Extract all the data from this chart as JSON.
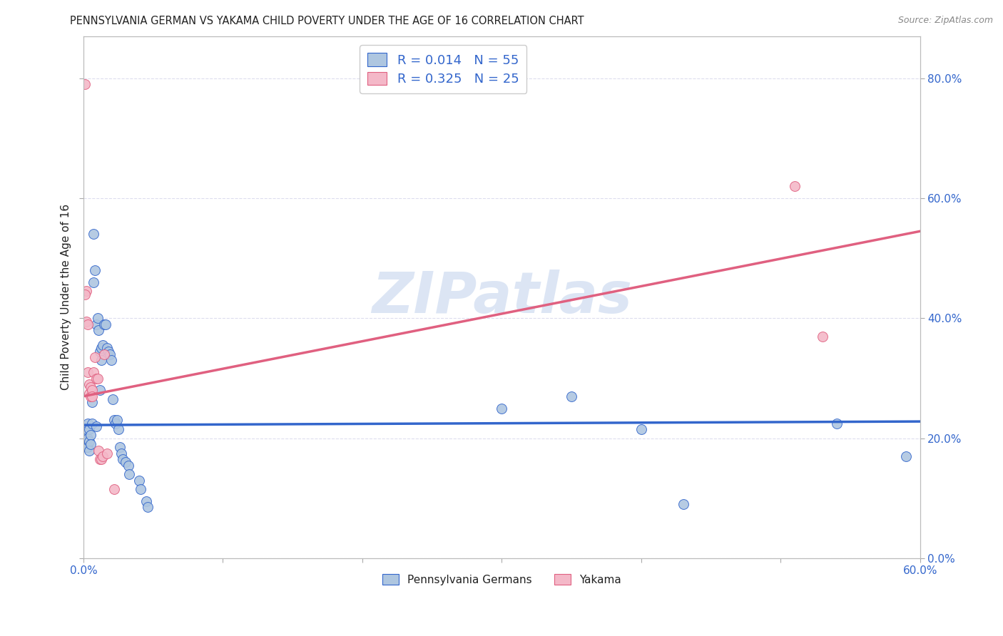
{
  "title": "PENNSYLVANIA GERMAN VS YAKAMA CHILD POVERTY UNDER THE AGE OF 16 CORRELATION CHART",
  "source": "Source: ZipAtlas.com",
  "ylabel": "Child Poverty Under the Age of 16",
  "watermark": "ZIPatlas",
  "legend_blue_R": "R = 0.014",
  "legend_blue_N": "N = 55",
  "legend_pink_R": "R = 0.325",
  "legend_pink_N": "N = 25",
  "blue_color": "#aec6e0",
  "pink_color": "#f4b8c8",
  "blue_line_color": "#3366cc",
  "pink_line_color": "#e06080",
  "blue_scatter": [
    [
      0.001,
      0.22
    ],
    [
      0.001,
      0.21
    ],
    [
      0.001,
      0.2
    ],
    [
      0.002,
      0.215
    ],
    [
      0.002,
      0.195
    ],
    [
      0.002,
      0.185
    ],
    [
      0.003,
      0.225
    ],
    [
      0.003,
      0.2
    ],
    [
      0.003,
      0.185
    ],
    [
      0.004,
      0.215
    ],
    [
      0.004,
      0.195
    ],
    [
      0.004,
      0.18
    ],
    [
      0.005,
      0.205
    ],
    [
      0.005,
      0.19
    ],
    [
      0.006,
      0.26
    ],
    [
      0.006,
      0.225
    ],
    [
      0.007,
      0.54
    ],
    [
      0.007,
      0.46
    ],
    [
      0.008,
      0.48
    ],
    [
      0.009,
      0.39
    ],
    [
      0.009,
      0.22
    ],
    [
      0.01,
      0.4
    ],
    [
      0.011,
      0.38
    ],
    [
      0.012,
      0.345
    ],
    [
      0.012,
      0.28
    ],
    [
      0.013,
      0.35
    ],
    [
      0.013,
      0.33
    ],
    [
      0.014,
      0.355
    ],
    [
      0.015,
      0.39
    ],
    [
      0.016,
      0.39
    ],
    [
      0.017,
      0.35
    ],
    [
      0.018,
      0.345
    ],
    [
      0.019,
      0.34
    ],
    [
      0.02,
      0.33
    ],
    [
      0.021,
      0.265
    ],
    [
      0.022,
      0.23
    ],
    [
      0.023,
      0.225
    ],
    [
      0.024,
      0.23
    ],
    [
      0.025,
      0.215
    ],
    [
      0.026,
      0.185
    ],
    [
      0.027,
      0.175
    ],
    [
      0.028,
      0.165
    ],
    [
      0.03,
      0.16
    ],
    [
      0.032,
      0.155
    ],
    [
      0.033,
      0.14
    ],
    [
      0.04,
      0.13
    ],
    [
      0.041,
      0.115
    ],
    [
      0.045,
      0.095
    ],
    [
      0.046,
      0.085
    ],
    [
      0.3,
      0.25
    ],
    [
      0.35,
      0.27
    ],
    [
      0.4,
      0.215
    ],
    [
      0.43,
      0.09
    ],
    [
      0.54,
      0.225
    ],
    [
      0.59,
      0.17
    ]
  ],
  "pink_scatter": [
    [
      0.001,
      0.79
    ],
    [
      0.002,
      0.445
    ],
    [
      0.002,
      0.395
    ],
    [
      0.003,
      0.39
    ],
    [
      0.003,
      0.31
    ],
    [
      0.004,
      0.29
    ],
    [
      0.004,
      0.275
    ],
    [
      0.005,
      0.285
    ],
    [
      0.005,
      0.27
    ],
    [
      0.006,
      0.28
    ],
    [
      0.006,
      0.27
    ],
    [
      0.007,
      0.31
    ],
    [
      0.008,
      0.335
    ],
    [
      0.009,
      0.3
    ],
    [
      0.01,
      0.3
    ],
    [
      0.011,
      0.18
    ],
    [
      0.012,
      0.165
    ],
    [
      0.013,
      0.165
    ],
    [
      0.014,
      0.17
    ],
    [
      0.015,
      0.34
    ],
    [
      0.017,
      0.175
    ],
    [
      0.022,
      0.115
    ],
    [
      0.51,
      0.62
    ],
    [
      0.53,
      0.37
    ],
    [
      0.001,
      0.44
    ]
  ],
  "xlim": [
    0.0,
    0.6
  ],
  "ylim": [
    0.0,
    0.87
  ],
  "yticks": [
    0.0,
    0.2,
    0.4,
    0.6,
    0.8
  ],
  "ytick_labels": [
    "0.0%",
    "20.0%",
    "40.0%",
    "60.0%",
    "80.0%"
  ],
  "blue_trendline": [
    [
      0.0,
      0.222
    ],
    [
      0.6,
      0.228
    ]
  ],
  "pink_trendline": [
    [
      0.0,
      0.27
    ],
    [
      0.6,
      0.545
    ]
  ],
  "background_color": "#ffffff",
  "grid_color": "#ddddee",
  "title_fontsize": 10.5,
  "axis_label_color": "#3366cc",
  "text_color": "#222222",
  "watermark_color": "#c5d5ee",
  "watermark_fontsize": 58,
  "marker_size": 100
}
